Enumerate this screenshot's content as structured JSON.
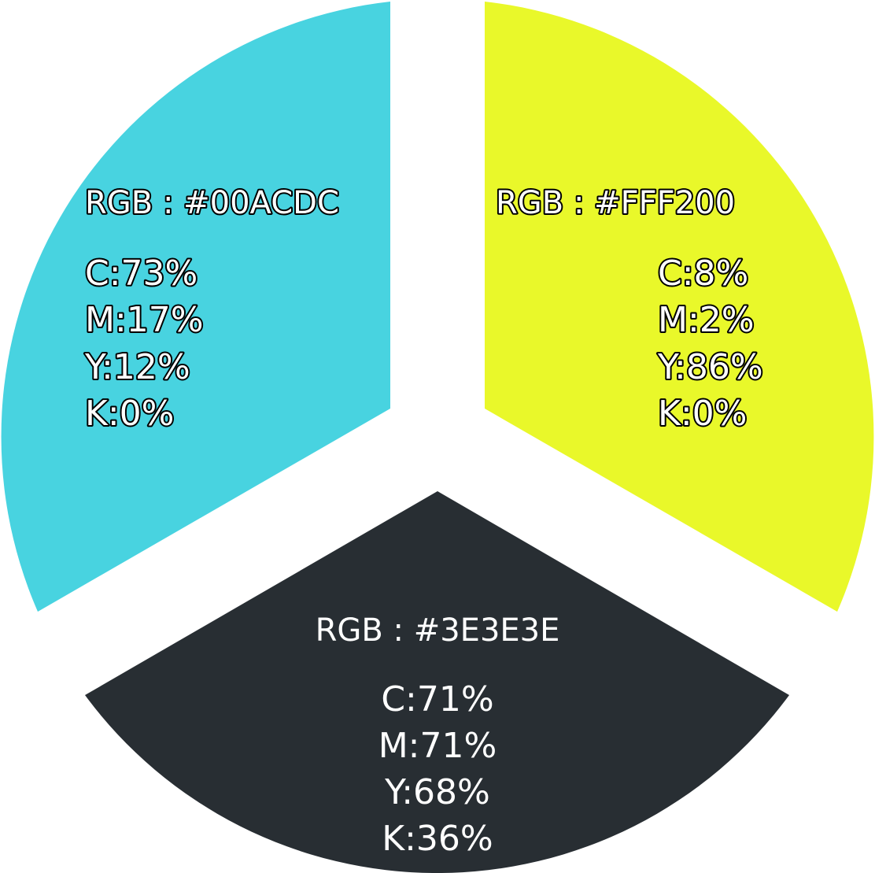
{
  "swatches": [
    {
      "id": "cyan",
      "fill": "#48D3E0",
      "rgb_label": "RGB : #00ACDC",
      "cmyk": [
        "C:73%",
        "M:17%",
        "Y:12%",
        "K:0%"
      ]
    },
    {
      "id": "yellow",
      "fill": "#E9F82A",
      "rgb_label": "RGB : #FFF200",
      "cmyk": [
        "C:8%",
        "M:2%",
        "Y:86%",
        "K:0%"
      ]
    },
    {
      "id": "dark",
      "fill": "#282E33",
      "rgb_label": "RGB : #3E3E3E",
      "cmyk": [
        "C:71%",
        "M:71%",
        "Y:68%",
        "K:36%"
      ]
    }
  ]
}
